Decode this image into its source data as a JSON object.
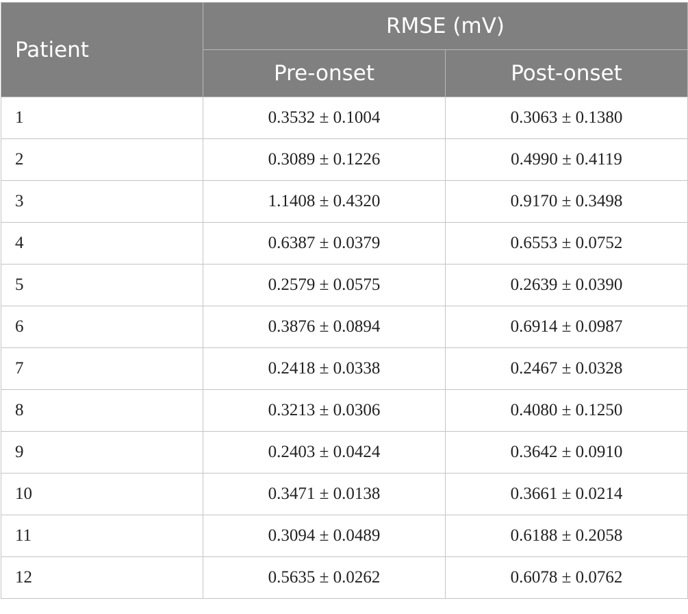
{
  "table": {
    "headers": {
      "patient": "Patient",
      "rmse": "RMSE (mV)",
      "pre_onset": "Pre-onset",
      "post_onset": "Post-onset"
    },
    "rows": [
      {
        "patient": "1",
        "pre": "0.3532 ± 0.1004",
        "post": "0.3063 ± 0.1380"
      },
      {
        "patient": "2",
        "pre": "0.3089 ± 0.1226",
        "post": "0.4990 ± 0.4119"
      },
      {
        "patient": "3",
        "pre": "1.1408 ± 0.4320",
        "post": "0.9170 ± 0.3498"
      },
      {
        "patient": "4",
        "pre": "0.6387 ± 0.0379",
        "post": "0.6553 ± 0.0752"
      },
      {
        "patient": "5",
        "pre": "0.2579 ± 0.0575",
        "post": "0.2639 ± 0.0390"
      },
      {
        "patient": "6",
        "pre": "0.3876 ± 0.0894",
        "post": "0.6914 ± 0.0987"
      },
      {
        "patient": "7",
        "pre": "0.2418 ± 0.0338",
        "post": "0.2467 ± 0.0328"
      },
      {
        "patient": "8",
        "pre": "0.3213 ± 0.0306",
        "post": "0.4080 ± 0.1250"
      },
      {
        "patient": "9",
        "pre": "0.2403 ± 0.0424",
        "post": "0.3642 ± 0.0910"
      },
      {
        "patient": "10",
        "pre": "0.3471 ± 0.0138",
        "post": "0.3661 ± 0.0214"
      },
      {
        "patient": "11",
        "pre": "0.3094 ± 0.0489",
        "post": "0.6188 ± 0.2058"
      },
      {
        "patient": "12",
        "pre": "0.5635 ± 0.0262",
        "post": "0.6078 ± 0.0762"
      }
    ]
  },
  "colors": {
    "header_bg": "#7f807f",
    "header_text": "#ffffff",
    "grid_line": "#c4c4c4",
    "body_text": "#222222"
  }
}
